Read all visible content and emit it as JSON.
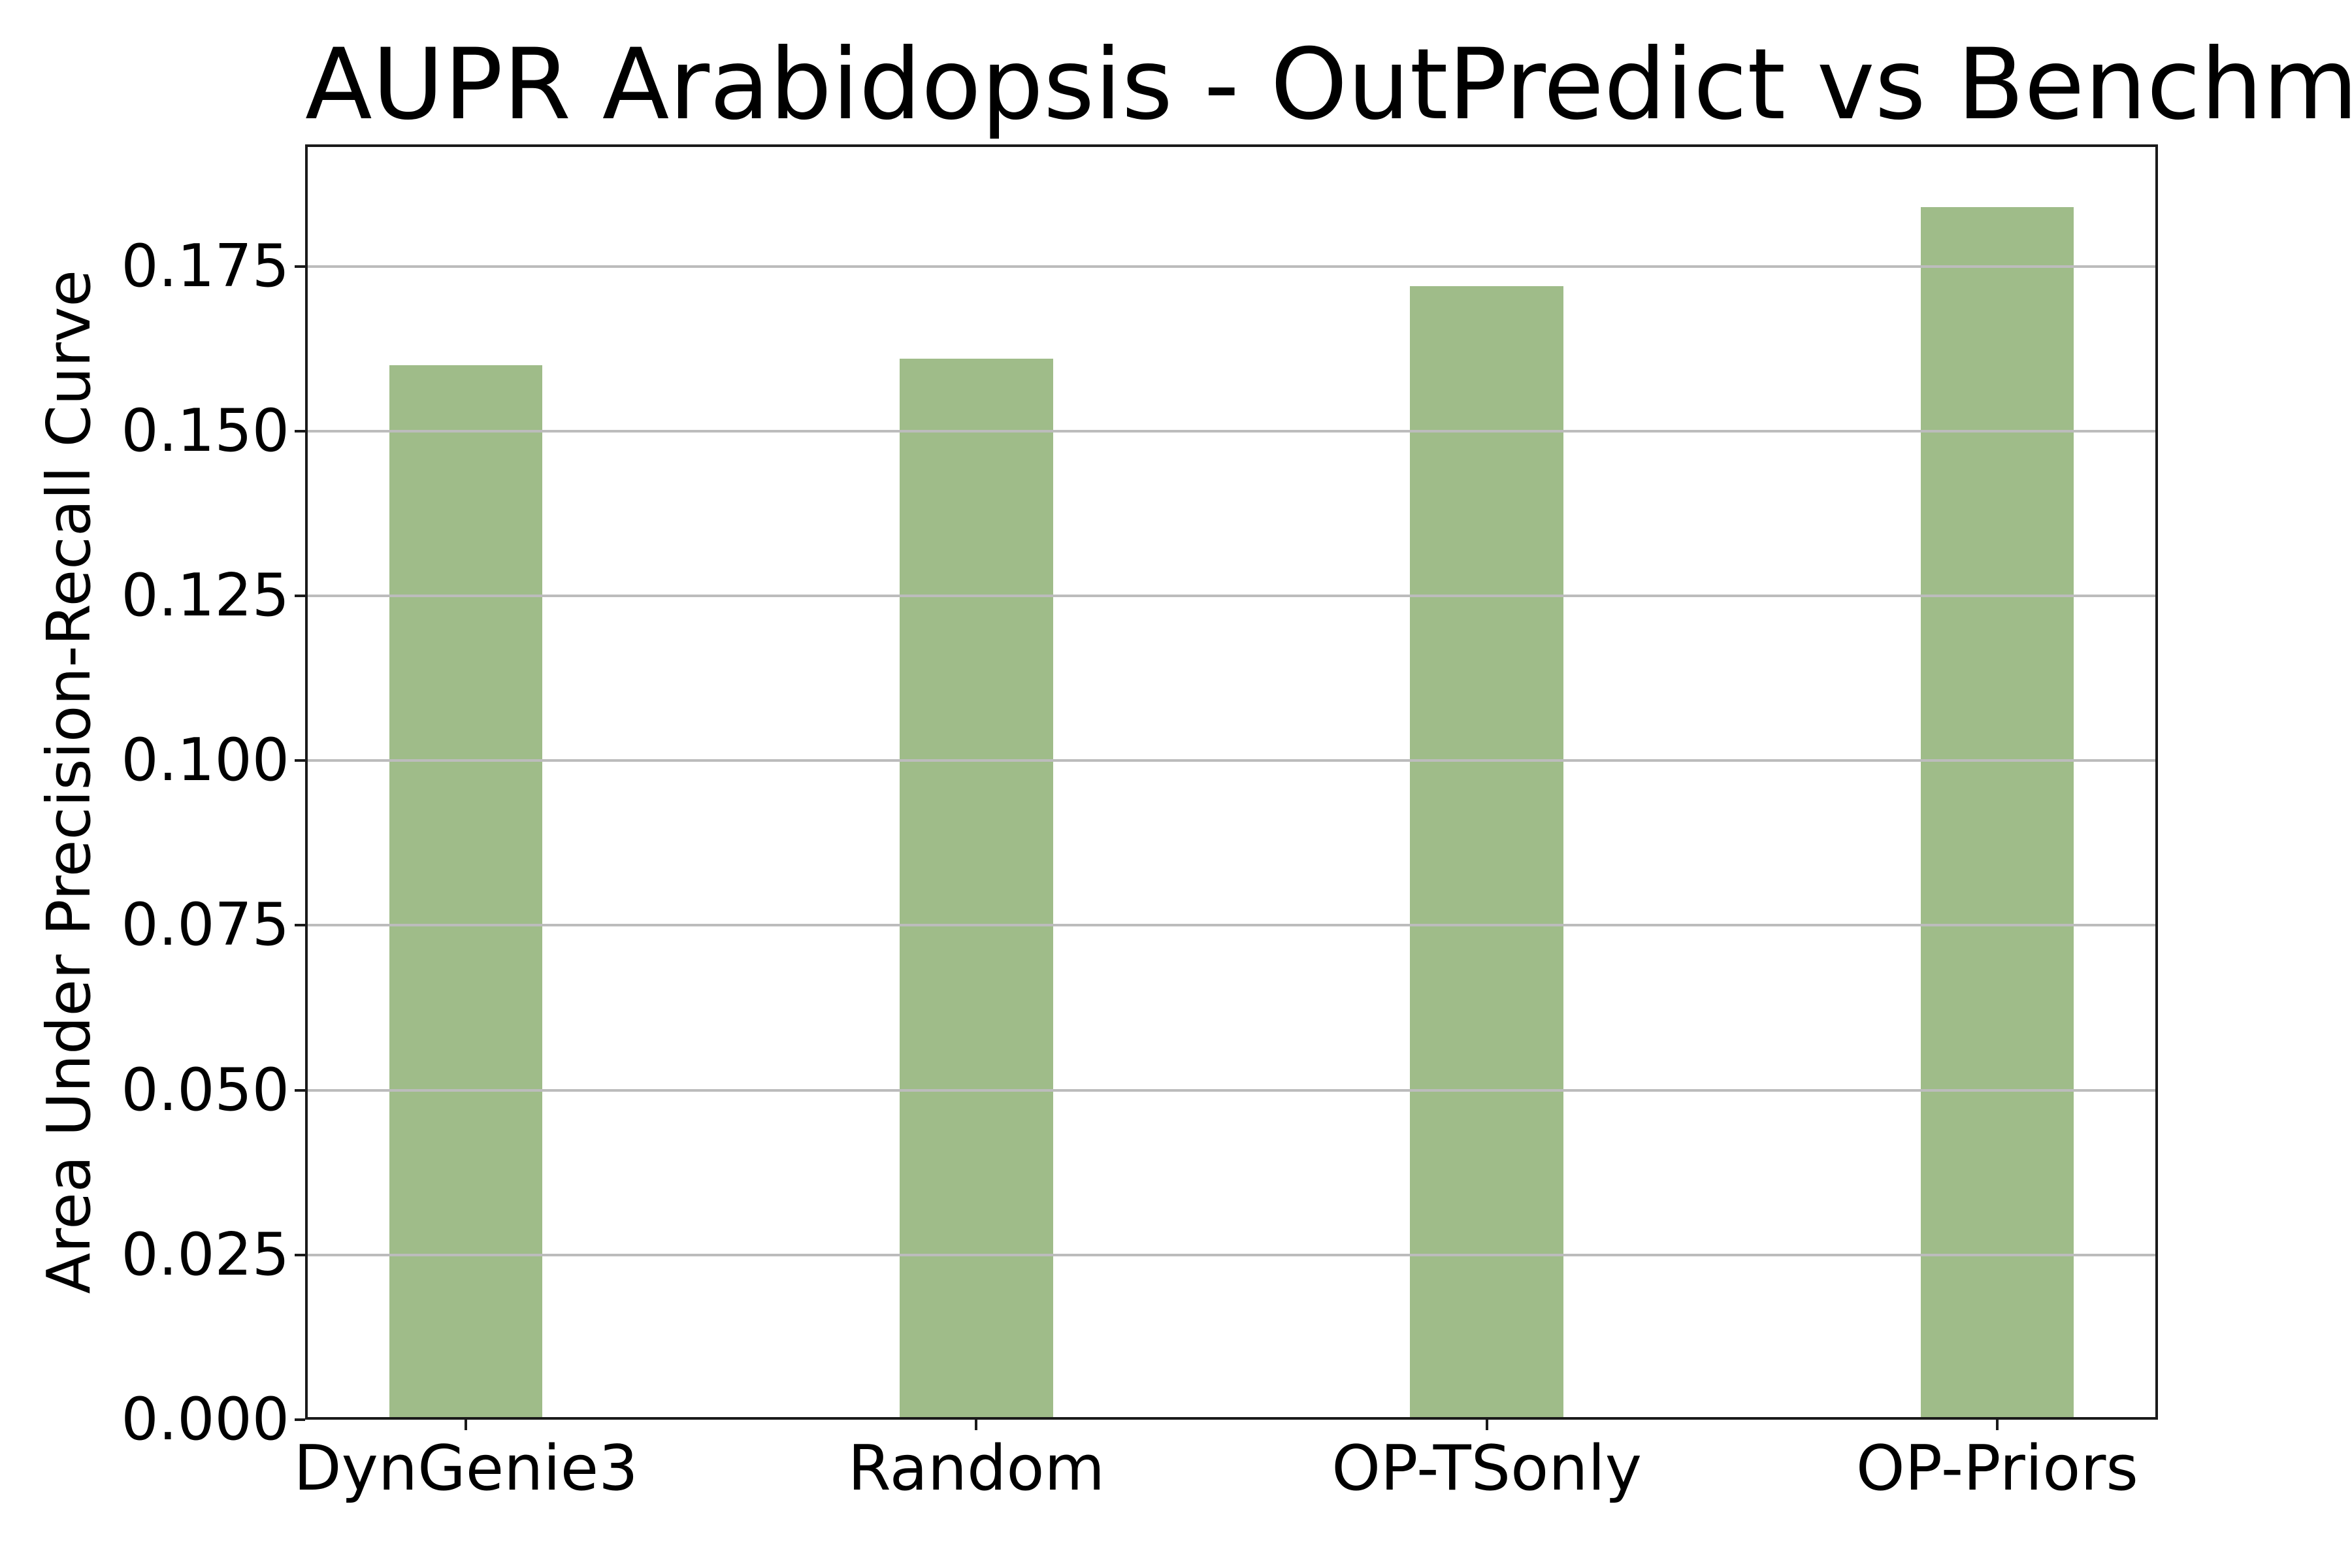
{
  "chart_data": {
    "type": "bar",
    "title": "AUPR Arabidopsis - OutPredict vs Benchmarks",
    "ylabel": "Area Under Precision-Recall Curve",
    "xlabel": "",
    "categories": [
      "DynGenie3",
      "Random",
      "OP-TSonly",
      "OP-Priors"
    ],
    "values": [
      0.16,
      0.161,
      0.172,
      0.184
    ],
    "yticks": [
      "0.000",
      "0.025",
      "0.050",
      "0.075",
      "0.100",
      "0.125",
      "0.150",
      "0.175"
    ],
    "ylim": [
      0,
      0.1935
    ],
    "bar_width_fraction_of_slot": 0.3,
    "bar_color": "#9fbc89",
    "gridline_color": "#bcbcbc",
    "grid": "horizontal gridlines drawn above bars",
    "legend": "none",
    "background": "#ffffff"
  }
}
